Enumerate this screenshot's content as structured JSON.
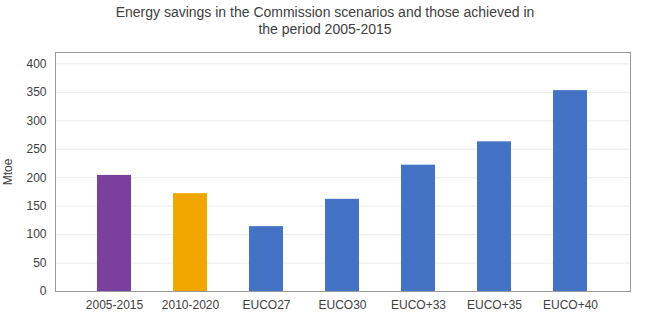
{
  "chart_data": {
    "type": "bar",
    "title": "Energy savings in the Commission scenarios and those achieved in\nthe period 2005-2015",
    "categories": [
      "2005-2015",
      "2010-2020",
      "EUCO27",
      "EUCO30",
      "EUCO+33",
      "EUCO+35",
      "EUCO+40"
    ],
    "values": [
      204,
      172,
      114,
      162,
      222,
      263,
      353
    ],
    "colors": [
      "#7B3F9E",
      "#F0A800",
      "#4472C4",
      "#4472C4",
      "#4472C4",
      "#4472C4",
      "#4472C4"
    ],
    "ylabel": "Mtoe",
    "ylim": [
      0,
      420
    ],
    "yticks": [
      0,
      50,
      100,
      150,
      200,
      250,
      300,
      350,
      400
    ],
    "grid": true
  }
}
